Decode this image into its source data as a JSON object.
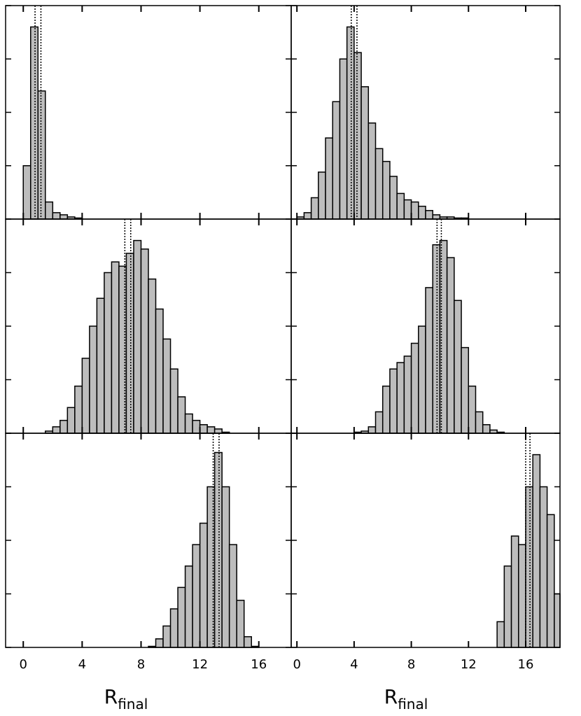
{
  "chart_data": [
    {
      "type": "histogram",
      "color": "#bdbdbd",
      "xlim": [
        -1.2,
        18.2
      ],
      "ylim": [
        0,
        100
      ],
      "xticks": [
        0,
        4,
        8,
        12,
        16
      ],
      "yticks": [
        0,
        25,
        50,
        75,
        100
      ],
      "vlines": [
        0.8,
        1.2
      ],
      "bins": [
        0,
        0.5,
        1,
        1.5,
        2,
        2.5,
        3,
        3.5,
        4
      ],
      "counts": [
        25,
        90,
        60,
        8,
        3,
        2,
        1,
        0.5
      ]
    },
    {
      "type": "histogram",
      "color": "#bdbdbd",
      "xlim": [
        -0.4,
        18.4
      ],
      "ylim": [
        0,
        100
      ],
      "xticks": [
        0,
        4,
        8,
        12,
        16
      ],
      "yticks": [
        0,
        25,
        50,
        75,
        100
      ],
      "vlines": [
        3.8,
        4.2
      ],
      "bins": [
        0,
        0.5,
        1,
        1.5,
        2,
        2.5,
        3,
        3.5,
        4,
        4.5,
        5,
        5.5,
        6,
        6.5,
        7,
        7.5,
        8,
        8.5,
        9,
        9.5,
        10,
        10.5,
        11,
        11.5,
        12
      ],
      "counts": [
        1,
        3,
        10,
        22,
        38,
        55,
        75,
        90,
        78,
        62,
        45,
        33,
        27,
        20,
        12,
        9,
        8,
        6,
        4,
        2,
        1,
        1,
        0.5,
        0.5
      ]
    },
    {
      "type": "histogram",
      "color": "#bdbdbd",
      "xlim": [
        -1.2,
        18.2
      ],
      "ylim": [
        0,
        100
      ],
      "xticks": [
        0,
        4,
        8,
        12,
        16
      ],
      "yticks": [
        0,
        25,
        50,
        75,
        100
      ],
      "vlines": [
        6.9,
        7.3
      ],
      "bins": [
        1.5,
        2,
        2.5,
        3,
        3.5,
        4,
        4.5,
        5,
        5.5,
        6,
        6.5,
        7,
        7.5,
        8,
        8.5,
        9,
        9.5,
        10,
        10.5,
        11,
        11.5,
        12,
        12.5,
        13,
        13.5,
        14
      ],
      "counts": [
        1,
        3,
        6,
        12,
        22,
        35,
        50,
        63,
        75,
        80,
        78,
        84,
        90,
        86,
        72,
        58,
        44,
        30,
        17,
        9,
        6,
        4,
        3,
        2,
        0.5
      ]
    },
    {
      "type": "histogram",
      "color": "#bdbdbd",
      "xlim": [
        -0.4,
        18.4
      ],
      "ylim": [
        0,
        100
      ],
      "xticks": [
        0,
        4,
        8,
        12,
        16
      ],
      "yticks": [
        0,
        25,
        50,
        75,
        100
      ],
      "vlines": [
        9.8,
        10.1
      ],
      "bins": [
        4,
        4.5,
        5,
        5.5,
        6,
        6.5,
        7,
        7.5,
        8,
        8.5,
        9,
        9.5,
        10,
        10.5,
        11,
        11.5,
        12,
        12.5,
        13,
        13.5,
        14,
        14.5
      ],
      "counts": [
        0.5,
        1,
        3,
        10,
        22,
        30,
        33,
        36,
        42,
        50,
        68,
        88,
        90,
        82,
        62,
        40,
        22,
        10,
        4,
        1.5,
        0.5
      ]
    },
    {
      "type": "histogram",
      "color": "#bdbdbd",
      "xlim": [
        -1.2,
        18.2
      ],
      "ylim": [
        0,
        100
      ],
      "xticks": [
        0,
        4,
        8,
        12,
        16
      ],
      "yticks": [
        0,
        25,
        50,
        75,
        100
      ],
      "vlines": [
        12.9,
        13.3
      ],
      "bins": [
        8.5,
        9,
        9.5,
        10,
        10.5,
        11,
        11.5,
        12,
        12.5,
        13,
        13.5,
        14,
        14.5,
        15,
        15.5,
        16
      ],
      "counts": [
        0.5,
        4,
        10,
        18,
        28,
        38,
        48,
        58,
        75,
        91,
        75,
        48,
        22,
        5,
        0.5
      ],
      "xtick_labels": [
        "0",
        "4",
        "8",
        "12",
        "16"
      ],
      "xlabel": "R",
      "xlabel_sub": "final"
    },
    {
      "type": "histogram",
      "color": "#bdbdbd",
      "xlim": [
        -0.4,
        18.4
      ],
      "ylim": [
        0,
        100
      ],
      "xticks": [
        0,
        4,
        8,
        12,
        16
      ],
      "yticks": [
        0,
        25,
        50,
        75,
        100
      ],
      "vlines": [
        16.0,
        16.3
      ],
      "bins": [
        14,
        14.5,
        15,
        15.5,
        16,
        16.5,
        17,
        17.5,
        18,
        18.4
      ],
      "counts": [
        12,
        38,
        52,
        48,
        75,
        90,
        75,
        62,
        25
      ],
      "xtick_labels": [
        "0",
        "4",
        "8",
        "12",
        "16"
      ],
      "xlabel": "R",
      "xlabel_sub": "final"
    }
  ]
}
